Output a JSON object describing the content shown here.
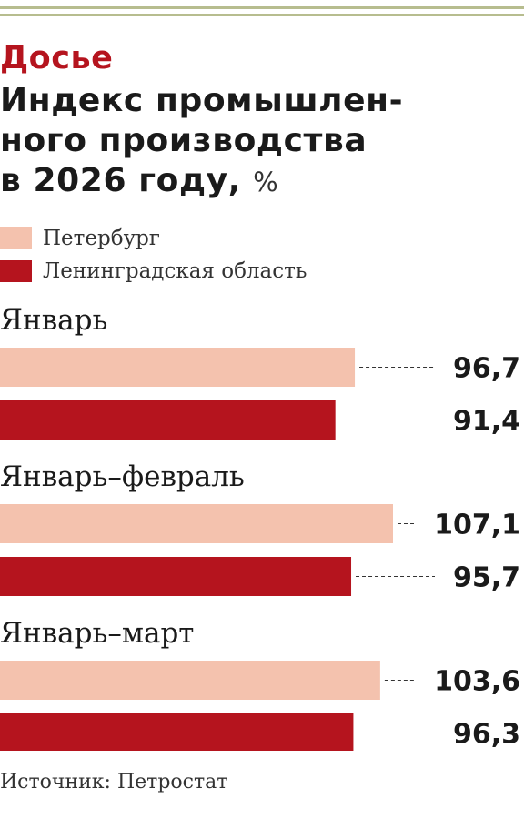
{
  "kicker": "Досье",
  "title_lines": [
    "Индекс промышлен-",
    "ного производства",
    "в 2026 году,"
  ],
  "title_unit": "%",
  "source": "Источник: Петростат",
  "colors": {
    "spb": "#f4c2ae",
    "lo": "#b5141e",
    "accent": "#b5141e",
    "rule": "#b7bd8f"
  },
  "chart_data": {
    "type": "bar",
    "orientation": "horizontal",
    "unit": "%",
    "categories": [
      "Январь",
      "Январь–февраль",
      "Январь–март"
    ],
    "series": [
      {
        "name": "Петербург",
        "values": [
          96.7,
          107.1,
          103.6
        ],
        "labels": [
          "96,7",
          "107,1",
          "103,6"
        ]
      },
      {
        "name": "Ленинградская область",
        "values": [
          91.4,
          95.7,
          96.3
        ],
        "labels": [
          "91,4",
          "95,7",
          "96,3"
        ]
      }
    ],
    "legend": "top-left",
    "grid": false,
    "xlim": [
      0,
      107.1
    ]
  }
}
